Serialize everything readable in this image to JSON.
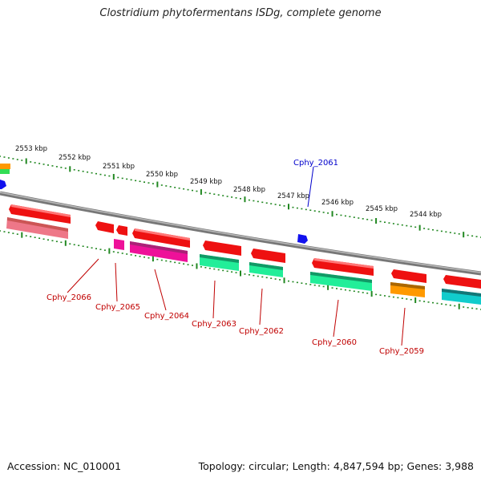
{
  "title": "Clostridium phytofermentans ISDg, complete genome",
  "footer": {
    "accession": "Accession: NC_010001",
    "topology": "Topology: circular; Length: 4,847,594 bp; Genes: 3,988"
  },
  "ticks": [
    {
      "label": "2553 kbp"
    },
    {
      "label": "2552 kbp"
    },
    {
      "label": "2551 kbp"
    },
    {
      "label": "2550 kbp"
    },
    {
      "label": "2549 kbp"
    },
    {
      "label": "2548 kbp"
    },
    {
      "label": "2547 kbp"
    },
    {
      "label": "2546 kbp"
    },
    {
      "label": "2545 kbp"
    },
    {
      "label": "2544 kbp"
    }
  ],
  "gene_labels": [
    {
      "name": "Cphy_2061",
      "color": "#0000cc"
    },
    {
      "name": "Cphy_2066",
      "color": "#c00000"
    },
    {
      "name": "Cphy_2065",
      "color": "#c00000"
    },
    {
      "name": "Cphy_2064",
      "color": "#c00000"
    },
    {
      "name": "Cphy_2063",
      "color": "#c00000"
    },
    {
      "name": "Cphy_2062",
      "color": "#c00000"
    },
    {
      "name": "Cphy_2060",
      "color": "#c00000"
    },
    {
      "name": "Cphy_2059",
      "color": "#c00000"
    }
  ],
  "colors": {
    "cds": "#ee1111",
    "pink": "#ee7788",
    "magenta": "#ee1199",
    "green": "#22ee99",
    "orange": "#ff9900",
    "cyan": "#11cccc",
    "blue": "#1111ee",
    "backbone": "#888888",
    "tick": "#228822"
  }
}
